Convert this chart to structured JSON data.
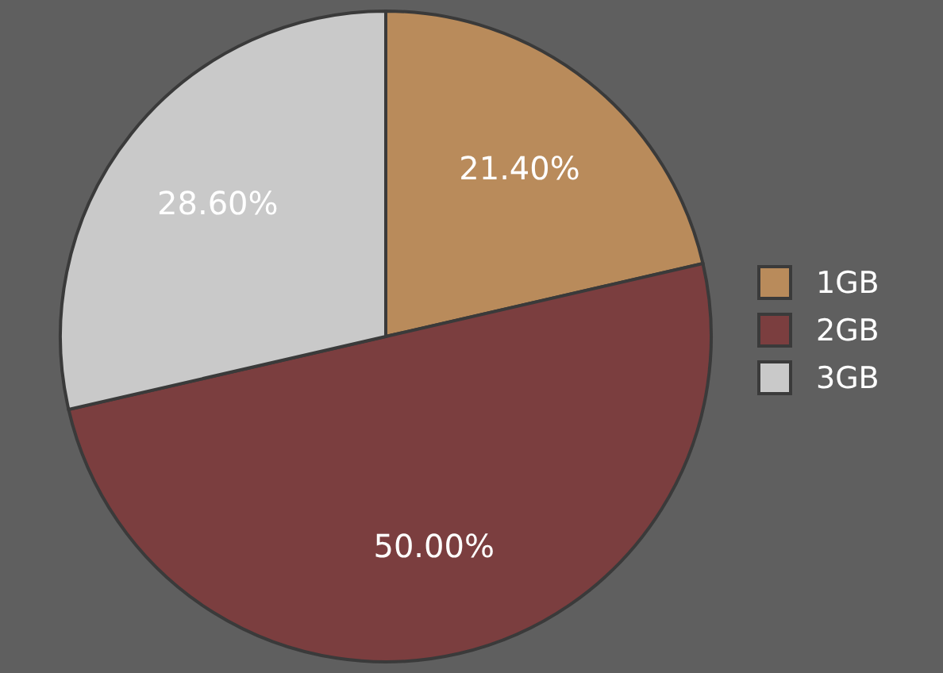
{
  "chart_data": {
    "type": "pie",
    "categories": [
      "1GB",
      "2GB",
      "3GB"
    ],
    "values": [
      21.4,
      50.0,
      28.6
    ],
    "colors": [
      "#b98b5b",
      "#7b3e3f",
      "#c9c9c9"
    ],
    "value_labels": [
      "21.40%",
      "50.00%",
      "28.60%"
    ],
    "legend": "right"
  }
}
